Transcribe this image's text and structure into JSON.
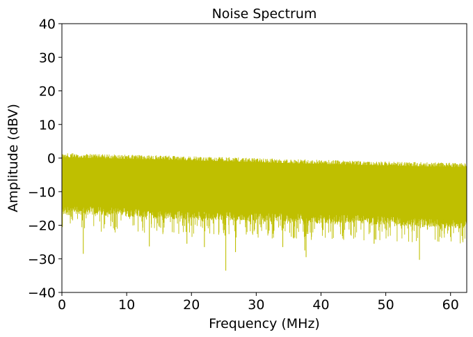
{
  "chart_data": {
    "type": "line",
    "title": "Noise Spectrum",
    "xlabel": "Frequency (MHz)",
    "ylabel": "Amplitude (dBV)",
    "xlim": [
      0,
      62.5
    ],
    "ylim": [
      -40,
      40
    ],
    "x_ticks": [
      0,
      10,
      20,
      30,
      40,
      50,
      60
    ],
    "x_tick_labels": [
      "0",
      "10",
      "20",
      "30",
      "40",
      "50",
      "60"
    ],
    "y_ticks": [
      -40,
      -30,
      -20,
      -10,
      0,
      10,
      20,
      30,
      40
    ],
    "y_tick_labels": [
      "−40",
      "−30",
      "−20",
      "−10",
      "0",
      "10",
      "20",
      "30",
      "40"
    ],
    "grid": false,
    "legend": "none",
    "series_color": "#bfbf00",
    "series": [
      {
        "x": [
          0,
          5,
          10,
          15,
          20,
          25,
          30,
          35,
          40,
          45,
          50,
          55,
          60,
          62.5
        ],
        "upper": [
          1.5,
          1.2,
          1.0,
          0.8,
          0.5,
          0.3,
          0.0,
          -0.3,
          -0.5,
          -0.8,
          -1.0,
          -1.2,
          -1.4,
          -1.5
        ],
        "lower": [
          -17,
          -17,
          -17.5,
          -18,
          -18.5,
          -18.5,
          -19,
          -19,
          -19.5,
          -19.5,
          -20,
          -20.5,
          -21,
          -21
        ],
        "spikes": [
          {
            "x": 3.3,
            "y": -28.5
          },
          {
            "x": 13.5,
            "y": -26.3
          },
          {
            "x": 19.3,
            "y": -25.5
          },
          {
            "x": 22.0,
            "y": -26.5
          },
          {
            "x": 25.3,
            "y": -33.5
          },
          {
            "x": 26.8,
            "y": -28.0
          },
          {
            "x": 34.1,
            "y": -26.5
          },
          {
            "x": 37.5,
            "y": -27.5
          },
          {
            "x": 37.7,
            "y": -29.5
          },
          {
            "x": 48.2,
            "y": -25.5
          },
          {
            "x": 55.2,
            "y": -30.3
          },
          {
            "x": 60.0,
            "y": -23.5
          }
        ]
      }
    ]
  }
}
